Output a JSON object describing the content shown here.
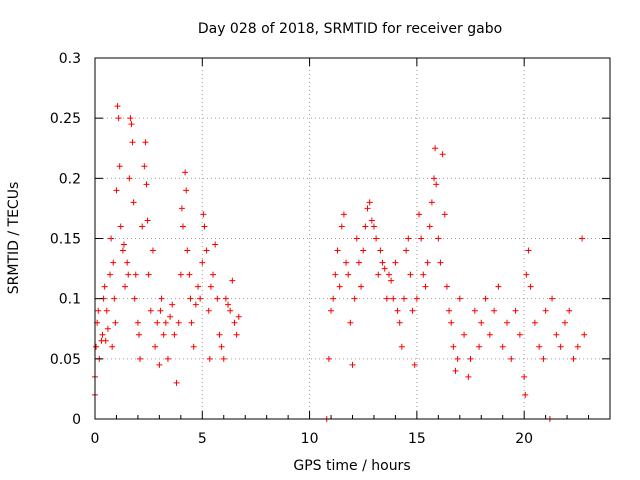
{
  "chart_data": {
    "type": "scatter",
    "title": "Day 028 of 2018, SRMTID for receiver gabo",
    "xlabel": "GPS time / hours",
    "ylabel": "SRMTID / TECUs",
    "xlim": [
      0,
      24
    ],
    "ylim": [
      0,
      0.3
    ],
    "xticks": [
      0,
      5,
      10,
      15,
      20
    ],
    "xtick_labels": [
      "0",
      "5",
      "10",
      "15",
      "20"
    ],
    "yticks": [
      0,
      0.05,
      0.1,
      0.15,
      0.2,
      0.25,
      0.3
    ],
    "ytick_labels": [
      "0",
      "0.05",
      "0.1",
      "0.15",
      "0.2",
      "0.25",
      "0.3"
    ],
    "grid": true,
    "marker": "+",
    "series": [
      {
        "name": "SRMTID",
        "color": "#ff0000",
        "points": [
          [
            0.0,
            0.02
          ],
          [
            0.0,
            0.035
          ],
          [
            0.05,
            0.06
          ],
          [
            0.1,
            0.08
          ],
          [
            0.15,
            0.09
          ],
          [
            0.2,
            0.05
          ],
          [
            0.3,
            0.065
          ],
          [
            0.35,
            0.07
          ],
          [
            0.4,
            0.1
          ],
          [
            0.45,
            0.11
          ],
          [
            0.5,
            0.065
          ],
          [
            0.55,
            0.09
          ],
          [
            0.6,
            0.075
          ],
          [
            0.7,
            0.12
          ],
          [
            0.75,
            0.15
          ],
          [
            0.8,
            0.06
          ],
          [
            0.85,
            0.13
          ],
          [
            0.9,
            0.1
          ],
          [
            0.95,
            0.08
          ],
          [
            1.0,
            0.19
          ],
          [
            1.05,
            0.26
          ],
          [
            1.1,
            0.25
          ],
          [
            1.15,
            0.21
          ],
          [
            1.2,
            0.16
          ],
          [
            1.3,
            0.14
          ],
          [
            1.35,
            0.145
          ],
          [
            1.4,
            0.11
          ],
          [
            1.5,
            0.13
          ],
          [
            1.55,
            0.12
          ],
          [
            1.6,
            0.2
          ],
          [
            1.65,
            0.25
          ],
          [
            1.7,
            0.245
          ],
          [
            1.75,
            0.23
          ],
          [
            1.8,
            0.18
          ],
          [
            1.85,
            0.1
          ],
          [
            1.9,
            0.12
          ],
          [
            2.0,
            0.08
          ],
          [
            2.05,
            0.07
          ],
          [
            2.1,
            0.05
          ],
          [
            2.2,
            0.16
          ],
          [
            2.3,
            0.21
          ],
          [
            2.35,
            0.23
          ],
          [
            2.4,
            0.195
          ],
          [
            2.45,
            0.165
          ],
          [
            2.5,
            0.12
          ],
          [
            2.6,
            0.09
          ],
          [
            2.7,
            0.14
          ],
          [
            2.8,
            0.06
          ],
          [
            2.9,
            0.08
          ],
          [
            3.0,
            0.045
          ],
          [
            3.05,
            0.09
          ],
          [
            3.1,
            0.1
          ],
          [
            3.2,
            0.07
          ],
          [
            3.3,
            0.08
          ],
          [
            3.4,
            0.05
          ],
          [
            3.5,
            0.085
          ],
          [
            3.6,
            0.095
          ],
          [
            3.7,
            0.07
          ],
          [
            3.8,
            0.03
          ],
          [
            3.9,
            0.08
          ],
          [
            4.0,
            0.12
          ],
          [
            4.05,
            0.175
          ],
          [
            4.1,
            0.16
          ],
          [
            4.2,
            0.205
          ],
          [
            4.25,
            0.19
          ],
          [
            4.3,
            0.14
          ],
          [
            4.4,
            0.12
          ],
          [
            4.45,
            0.1
          ],
          [
            4.5,
            0.08
          ],
          [
            4.6,
            0.06
          ],
          [
            4.7,
            0.095
          ],
          [
            4.8,
            0.11
          ],
          [
            4.9,
            0.1
          ],
          [
            5.0,
            0.13
          ],
          [
            5.05,
            0.17
          ],
          [
            5.1,
            0.16
          ],
          [
            5.2,
            0.14
          ],
          [
            5.3,
            0.09
          ],
          [
            5.35,
            0.05
          ],
          [
            5.4,
            0.11
          ],
          [
            5.5,
            0.12
          ],
          [
            5.6,
            0.145
          ],
          [
            5.7,
            0.1
          ],
          [
            5.8,
            0.07
          ],
          [
            5.9,
            0.06
          ],
          [
            6.0,
            0.05
          ],
          [
            6.1,
            0.1
          ],
          [
            6.2,
            0.095
          ],
          [
            6.3,
            0.09
          ],
          [
            6.4,
            0.115
          ],
          [
            6.5,
            0.08
          ],
          [
            6.6,
            0.07
          ],
          [
            6.7,
            0.085
          ],
          [
            10.8,
            0.0
          ],
          [
            10.9,
            0.05
          ],
          [
            11.0,
            0.09
          ],
          [
            11.1,
            0.1
          ],
          [
            11.2,
            0.12
          ],
          [
            11.3,
            0.14
          ],
          [
            11.4,
            0.11
          ],
          [
            11.5,
            0.16
          ],
          [
            11.6,
            0.17
          ],
          [
            11.7,
            0.13
          ],
          [
            11.8,
            0.12
          ],
          [
            11.9,
            0.08
          ],
          [
            12.0,
            0.045
          ],
          [
            12.1,
            0.1
          ],
          [
            12.2,
            0.15
          ],
          [
            12.3,
            0.13
          ],
          [
            12.4,
            0.11
          ],
          [
            12.5,
            0.14
          ],
          [
            12.6,
            0.16
          ],
          [
            12.7,
            0.175
          ],
          [
            12.8,
            0.18
          ],
          [
            12.9,
            0.165
          ],
          [
            13.0,
            0.16
          ],
          [
            13.1,
            0.15
          ],
          [
            13.2,
            0.12
          ],
          [
            13.3,
            0.14
          ],
          [
            13.4,
            0.13
          ],
          [
            13.5,
            0.125
          ],
          [
            13.6,
            0.1
          ],
          [
            13.7,
            0.12
          ],
          [
            13.8,
            0.115
          ],
          [
            13.9,
            0.1
          ],
          [
            14.0,
            0.13
          ],
          [
            14.1,
            0.09
          ],
          [
            14.2,
            0.08
          ],
          [
            14.3,
            0.06
          ],
          [
            14.4,
            0.1
          ],
          [
            14.5,
            0.14
          ],
          [
            14.6,
            0.15
          ],
          [
            14.7,
            0.12
          ],
          [
            14.8,
            0.09
          ],
          [
            14.9,
            0.045
          ],
          [
            15.0,
            0.1
          ],
          [
            15.1,
            0.17
          ],
          [
            15.2,
            0.15
          ],
          [
            15.3,
            0.12
          ],
          [
            15.4,
            0.11
          ],
          [
            15.5,
            0.13
          ],
          [
            15.6,
            0.16
          ],
          [
            15.7,
            0.18
          ],
          [
            15.8,
            0.2
          ],
          [
            15.85,
            0.225
          ],
          [
            15.9,
            0.195
          ],
          [
            16.0,
            0.15
          ],
          [
            16.1,
            0.13
          ],
          [
            16.2,
            0.22
          ],
          [
            16.3,
            0.17
          ],
          [
            16.4,
            0.11
          ],
          [
            16.5,
            0.09
          ],
          [
            16.6,
            0.08
          ],
          [
            16.7,
            0.06
          ],
          [
            16.8,
            0.04
          ],
          [
            16.9,
            0.05
          ],
          [
            17.0,
            0.1
          ],
          [
            17.2,
            0.07
          ],
          [
            17.4,
            0.035
          ],
          [
            17.5,
            0.05
          ],
          [
            17.7,
            0.09
          ],
          [
            17.9,
            0.06
          ],
          [
            18.0,
            0.08
          ],
          [
            18.2,
            0.1
          ],
          [
            18.4,
            0.07
          ],
          [
            18.6,
            0.09
          ],
          [
            18.8,
            0.11
          ],
          [
            19.0,
            0.06
          ],
          [
            19.2,
            0.08
          ],
          [
            19.4,
            0.05
          ],
          [
            19.6,
            0.09
          ],
          [
            19.8,
            0.07
          ],
          [
            20.0,
            0.035
          ],
          [
            20.05,
            0.02
          ],
          [
            20.1,
            0.12
          ],
          [
            20.2,
            0.14
          ],
          [
            20.3,
            0.11
          ],
          [
            20.5,
            0.08
          ],
          [
            20.7,
            0.06
          ],
          [
            20.9,
            0.05
          ],
          [
            21.0,
            0.09
          ],
          [
            21.2,
            0.0
          ],
          [
            21.3,
            0.1
          ],
          [
            21.5,
            0.07
          ],
          [
            21.7,
            0.06
          ],
          [
            21.9,
            0.08
          ],
          [
            22.1,
            0.09
          ],
          [
            22.3,
            0.05
          ],
          [
            22.5,
            0.06
          ],
          [
            22.7,
            0.15
          ],
          [
            22.8,
            0.07
          ]
        ]
      }
    ]
  }
}
